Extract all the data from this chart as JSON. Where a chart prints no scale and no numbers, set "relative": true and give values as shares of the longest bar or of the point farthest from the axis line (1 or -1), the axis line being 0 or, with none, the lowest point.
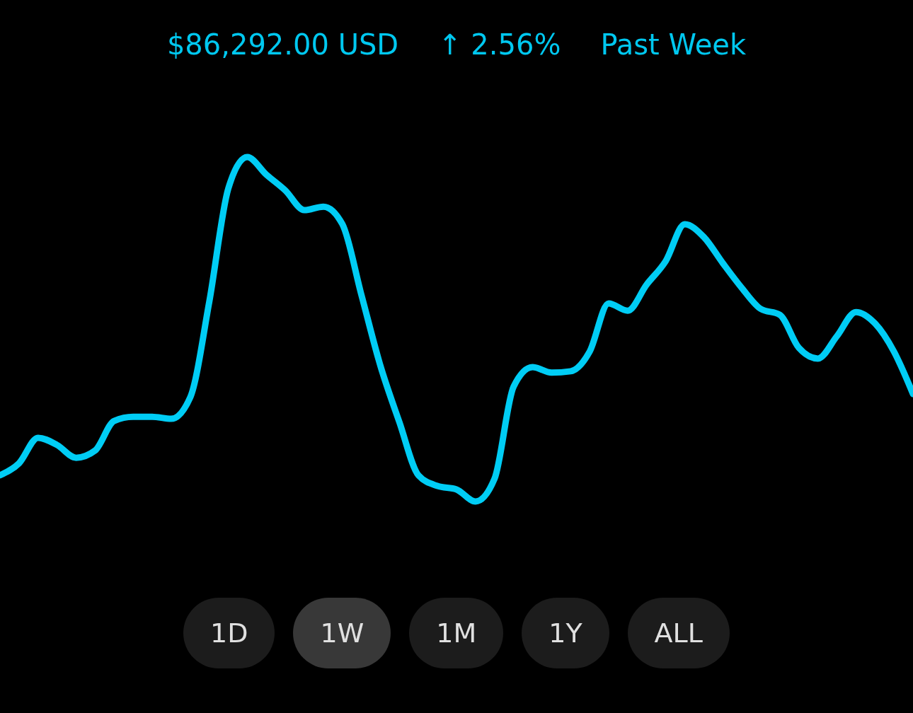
{
  "chart_data": {
    "type": "line",
    "title": "$86,292.00 USD",
    "relative": true,
    "annotations": [
      "↑ 2.56%",
      "Past Week",
      "1D",
      "1W",
      "1M",
      "1Y",
      "ALL"
    ],
    "categories": [
      null,
      null,
      null,
      null,
      null,
      null,
      null,
      null,
      null,
      null,
      null,
      null,
      null,
      null,
      null,
      null,
      null,
      null,
      null,
      null,
      null,
      null,
      null,
      null,
      null,
      null,
      null,
      null,
      null,
      null,
      null,
      null,
      null,
      null,
      null,
      null,
      null,
      null,
      null,
      null,
      null,
      null,
      null,
      null,
      null,
      null,
      null,
      null,
      null
    ],
    "series": [
      {
        "color": "#00cdf5",
        "values": [
          0.076,
          0.111,
          0.185,
          0.164,
          0.127,
          0.148,
          0.234,
          0.246,
          0.246,
          0.24,
          0.302,
          0.579,
          0.908,
          1,
          0.949,
          0.903,
          0.846,
          0.856,
          0.805,
          0.6,
          0.394,
          0.23,
          0.076,
          0.045,
          0.035,
          0,
          0.066,
          0.333,
          0.39,
          0.374,
          0.378,
          0.435,
          0.575,
          0.554,
          0.63,
          0.698,
          0.805,
          0.768,
          0.692,
          0.62,
          0.559,
          0.542,
          0.446,
          0.415,
          0.48,
          0.55,
          0.517,
          0.435,
          0.312
        ]
      }
    ],
    "line_style": "solid",
    "marker": "none"
  }
}
